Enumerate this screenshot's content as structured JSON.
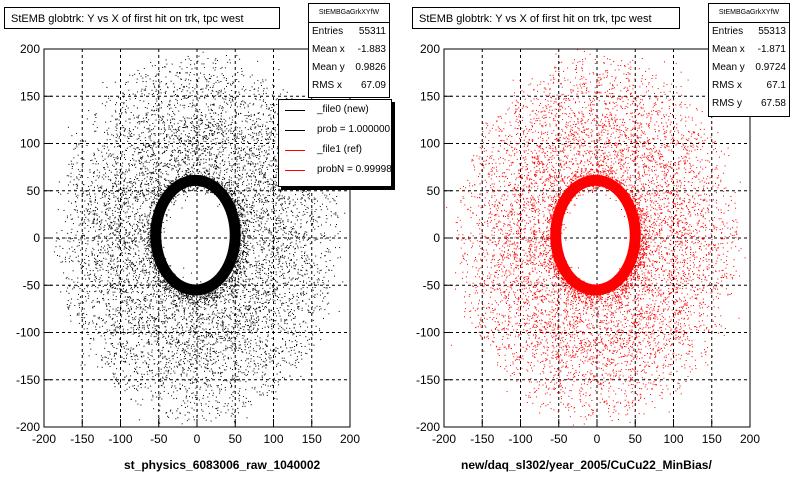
{
  "chart_data": [
    {
      "type": "scatter",
      "title": "StEMB globtrk: Y vs X of first hit on trk, tpc west",
      "xlabel": "st_physics_6083006_raw_1040002",
      "ylabel": "",
      "xlim": [
        -200,
        200
      ],
      "ylim": [
        -200,
        200
      ],
      "x_ticks": [
        "-200",
        "-150",
        "-100",
        "-50",
        "0",
        "50",
        "100",
        "150",
        "200"
      ],
      "y_ticks": [
        "200",
        "150",
        "100",
        "50",
        "0",
        "-50",
        "-100",
        "-150",
        "-200"
      ],
      "grid": true,
      "marker_color": "#000000",
      "stats": {
        "name": "StEMBGaGrkXYfW",
        "entries_label": "Entries",
        "entries": "55311",
        "mean_x_label": "Mean x",
        "mean_x": "-1.883",
        "mean_y_label": "Mean y",
        "mean_y": "0.9826",
        "rms_x_label": "RMS x",
        "rms_x": "67.09"
      },
      "legend": [
        {
          "label": "_file0 (new)",
          "color": "#000000"
        },
        {
          "label": "prob = 1.000000",
          "color": "#000000"
        },
        {
          "label": "_file1 (ref)",
          "color": "#ff0000"
        },
        {
          "label": "probN = 0.99998",
          "color": "#ff0000"
        }
      ]
    },
    {
      "type": "scatter",
      "title": "StEMB globtrk: Y vs X of first hit on trk, tpc west",
      "xlabel": "new/daq_sl302/year_2005/CuCu22_MinBias/",
      "ylabel": "",
      "xlim": [
        -200,
        200
      ],
      "ylim": [
        -200,
        200
      ],
      "x_ticks": [
        "-200",
        "-150",
        "-100",
        "-50",
        "0",
        "50",
        "100",
        "150",
        "200"
      ],
      "y_ticks": [
        "200",
        "150",
        "100",
        "50",
        "0",
        "-50",
        "-100",
        "-150",
        "-200"
      ],
      "grid": true,
      "marker_color": "#ff0000",
      "stats": {
        "name": "StEMBGaGrkXYfW",
        "entries_label": "Entries",
        "entries": "55313",
        "mean_x_label": "Mean x",
        "mean_x": "-1.871",
        "mean_y_label": "Mean y",
        "mean_y": "0.9724",
        "rms_x_label": "RMS x",
        "rms_x": "67.1",
        "rms_y_label": "RMS y",
        "rms_y": "67.58"
      }
    }
  ]
}
